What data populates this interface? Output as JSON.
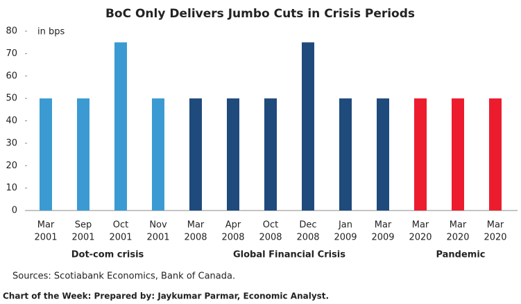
{
  "chart_data": {
    "type": "bar",
    "title": "BoC Only Delivers Jumbo Cuts in Crisis Periods",
    "y_label": "in bps",
    "categories": [
      [
        "Mar",
        "2001"
      ],
      [
        "Sep",
        "2001"
      ],
      [
        "Oct",
        "2001"
      ],
      [
        "Nov",
        "2001"
      ],
      [
        "Mar",
        "2008"
      ],
      [
        "Apr",
        "2008"
      ],
      [
        "Oct",
        "2008"
      ],
      [
        "Dec",
        "2008"
      ],
      [
        "Jan",
        "2009"
      ],
      [
        "Mar",
        "2009"
      ],
      [
        "Mar",
        "2020"
      ],
      [
        "Mar",
        "2020"
      ],
      [
        "Mar",
        "2020"
      ]
    ],
    "values": [
      50,
      50,
      75,
      50,
      50,
      50,
      50,
      75,
      50,
      50,
      50,
      50,
      50
    ],
    "colors": [
      "#3b9ad2",
      "#3b9ad2",
      "#3b9ad2",
      "#3b9ad2",
      "#1f4a7c",
      "#1f4a7c",
      "#1f4a7c",
      "#1f4a7c",
      "#1f4a7c",
      "#1f4a7c",
      "#ec1c2e",
      "#ec1c2e",
      "#ec1c2e"
    ],
    "annotations": [
      "Dot-com crisis",
      "Global Financial Crisis",
      "Pandemic"
    ],
    "ylim": [
      0,
      80
    ],
    "yticks": [
      0,
      10,
      20,
      30,
      40,
      50,
      60,
      70,
      80
    ],
    "source": "Sources: Scotiabank Economics, Bank of Canada.",
    "footer": "Chart of the Week: Prepared by: Jaykumar Parmar, Economic Analyst."
  }
}
